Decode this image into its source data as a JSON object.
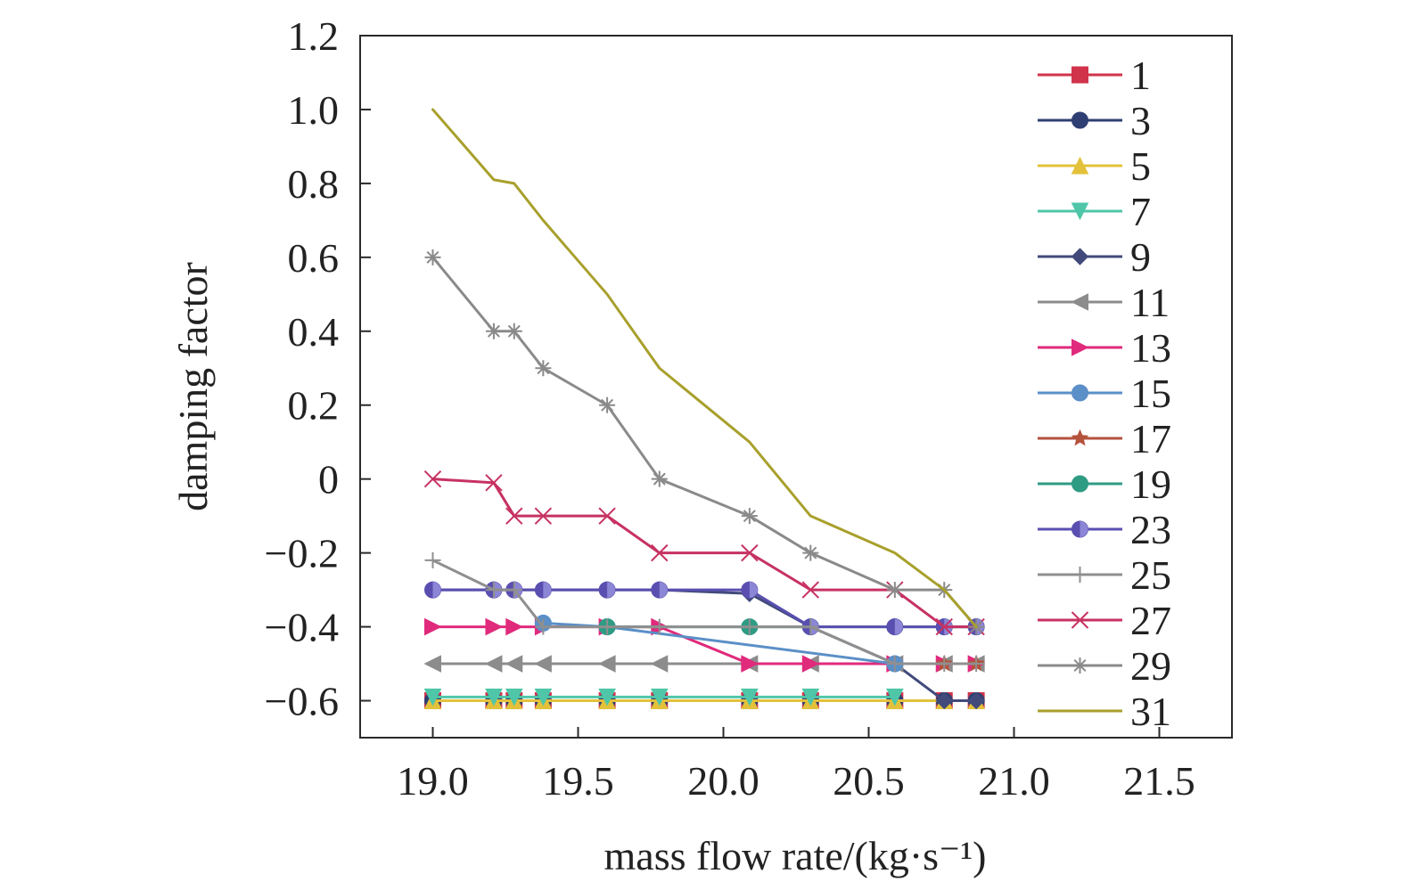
{
  "chart_data": {
    "type": "line",
    "xlabel": "mass flow rate/(kg·s⁻¹)",
    "ylabel": "damping factor",
    "xlim": [
      18.75,
      21.75
    ],
    "ylim": [
      -0.7,
      1.2
    ],
    "x_ticks": [
      "19.0",
      "19.5",
      "20.0",
      "20.5",
      "21.0",
      "21.5"
    ],
    "y_ticks": [
      "1.2",
      "1.0",
      "0.8",
      "0.6",
      "0.4",
      "0.2",
      "0",
      "−0.2",
      "−0.4",
      "−0.6"
    ],
    "grid": false,
    "legend_position": "right",
    "series": [
      {
        "name": "1",
        "color": "#d1334a",
        "marker": "square",
        "x": [
          19.0,
          19.21,
          19.28,
          19.38,
          19.6,
          19.78,
          20.09,
          20.3,
          20.59,
          20.76,
          20.87
        ],
        "y": [
          -0.6,
          -0.6,
          -0.6,
          -0.6,
          -0.6,
          -0.6,
          -0.6,
          -0.6,
          -0.6,
          -0.6,
          -0.6
        ]
      },
      {
        "name": "3",
        "color": "#2f3f73",
        "marker": "circle",
        "x": [
          19.0,
          19.21,
          19.28,
          19.38,
          19.6,
          19.78,
          20.09,
          20.3,
          20.59,
          20.76,
          20.87
        ],
        "y": [
          -0.6,
          -0.6,
          -0.6,
          -0.6,
          -0.6,
          -0.6,
          -0.6,
          -0.6,
          -0.6,
          -0.6,
          -0.6
        ]
      },
      {
        "name": "5",
        "color": "#e3c13a",
        "marker": "triangle-up",
        "x": [
          19.0,
          19.21,
          19.28,
          19.38,
          19.6,
          19.78,
          20.09,
          20.3,
          20.59,
          20.76,
          20.87
        ],
        "y": [
          -0.6,
          -0.6,
          -0.6,
          -0.6,
          -0.6,
          -0.6,
          -0.6,
          -0.6,
          -0.6,
          -0.6,
          -0.6
        ]
      },
      {
        "name": "7",
        "color": "#4fc6a8",
        "marker": "triangle-down",
        "x": [
          19.0,
          19.21,
          19.28,
          19.38,
          19.6,
          19.78,
          20.09,
          20.3,
          20.59
        ],
        "y": [
          -0.59,
          -0.59,
          -0.59,
          -0.59,
          -0.59,
          -0.59,
          -0.59,
          -0.59,
          -0.59
        ]
      },
      {
        "name": "9",
        "color": "#414a7b",
        "marker": "diamond",
        "x": [
          19.0,
          19.21,
          19.28,
          19.38,
          19.6,
          19.78,
          20.09,
          20.3,
          20.59,
          20.76,
          20.87
        ],
        "y": [
          -0.3,
          -0.3,
          -0.3,
          -0.3,
          -0.3,
          -0.3,
          -0.31,
          -0.4,
          -0.5,
          -0.6,
          -0.6
        ]
      },
      {
        "name": "11",
        "color": "#8c8c8c",
        "marker": "triangle-left",
        "x": [
          19.0,
          19.21,
          19.28,
          19.38,
          19.6,
          19.78,
          20.09,
          20.3,
          20.59,
          20.76,
          20.87
        ],
        "y": [
          -0.5,
          -0.5,
          -0.5,
          -0.5,
          -0.5,
          -0.5,
          -0.5,
          -0.5,
          -0.5,
          -0.5,
          -0.5
        ]
      },
      {
        "name": "13",
        "color": "#e02a7c",
        "marker": "triangle-right",
        "x": [
          19.0,
          19.21,
          19.28,
          19.38,
          19.6,
          19.78,
          20.09,
          20.3,
          20.59,
          20.76,
          20.87
        ],
        "y": [
          -0.4,
          -0.4,
          -0.4,
          -0.4,
          -0.4,
          -0.4,
          -0.5,
          -0.5,
          -0.5,
          -0.5,
          -0.5
        ]
      },
      {
        "name": "15",
        "color": "#5b8fc7",
        "marker": "circle",
        "x": [
          19.38,
          19.6,
          20.59
        ],
        "y": [
          -0.39,
          -0.4,
          -0.5
        ]
      },
      {
        "name": "17",
        "color": "#b4523b",
        "marker": "star",
        "x": [
          20.76,
          20.87
        ],
        "y": [
          -0.5,
          -0.5
        ]
      },
      {
        "name": "19",
        "color": "#2e9b83",
        "marker": "circle",
        "x": [
          19.6,
          20.09,
          20.3,
          20.59,
          20.76,
          20.87
        ],
        "y": [
          -0.4,
          -0.4,
          -0.4,
          -0.4,
          -0.4,
          -0.4
        ]
      },
      {
        "name": "23",
        "color": "#5a4fb0",
        "marker": "half-circle",
        "x": [
          19.0,
          19.21,
          19.28,
          19.38,
          19.6,
          19.78,
          20.09,
          20.3,
          20.59,
          20.76,
          20.87
        ],
        "y": [
          -0.3,
          -0.3,
          -0.3,
          -0.3,
          -0.3,
          -0.3,
          -0.3,
          -0.4,
          -0.4,
          -0.4,
          -0.4
        ]
      },
      {
        "name": "25",
        "color": "#8f8f8f",
        "marker": "plus",
        "x": [
          19.0,
          19.21,
          19.28,
          19.38,
          19.6,
          19.78,
          20.09,
          20.3,
          20.59,
          20.76,
          20.87
        ],
        "y": [
          -0.22,
          -0.3,
          -0.3,
          -0.4,
          -0.4,
          -0.4,
          -0.4,
          -0.4,
          -0.5,
          -0.5,
          -0.5
        ]
      },
      {
        "name": "27",
        "color": "#c73262",
        "marker": "x",
        "x": [
          19.0,
          19.21,
          19.28,
          19.38,
          19.6,
          19.78,
          20.09,
          20.3,
          20.59,
          20.76,
          20.87
        ],
        "y": [
          0.0,
          -0.01,
          -0.1,
          -0.1,
          -0.1,
          -0.2,
          -0.2,
          -0.3,
          -0.3,
          -0.4,
          -0.4
        ]
      },
      {
        "name": "29",
        "color": "#8a8a8a",
        "marker": "asterisk",
        "x": [
          19.0,
          19.21,
          19.28,
          19.38,
          19.6,
          19.78,
          20.09,
          20.3,
          20.59,
          20.76,
          20.87
        ],
        "y": [
          0.6,
          0.4,
          0.4,
          0.3,
          0.2,
          0.0,
          -0.1,
          -0.2,
          -0.3,
          -0.3,
          -0.4
        ]
      },
      {
        "name": "31",
        "color": "#a8a02c",
        "marker": "line",
        "x": [
          19.0,
          19.21,
          19.28,
          19.38,
          19.6,
          19.78,
          20.09,
          20.3,
          20.59,
          20.76,
          20.87
        ],
        "y": [
          1.0,
          0.81,
          0.8,
          0.7,
          0.5,
          0.3,
          0.1,
          -0.1,
          -0.2,
          -0.3,
          -0.4
        ]
      }
    ]
  }
}
